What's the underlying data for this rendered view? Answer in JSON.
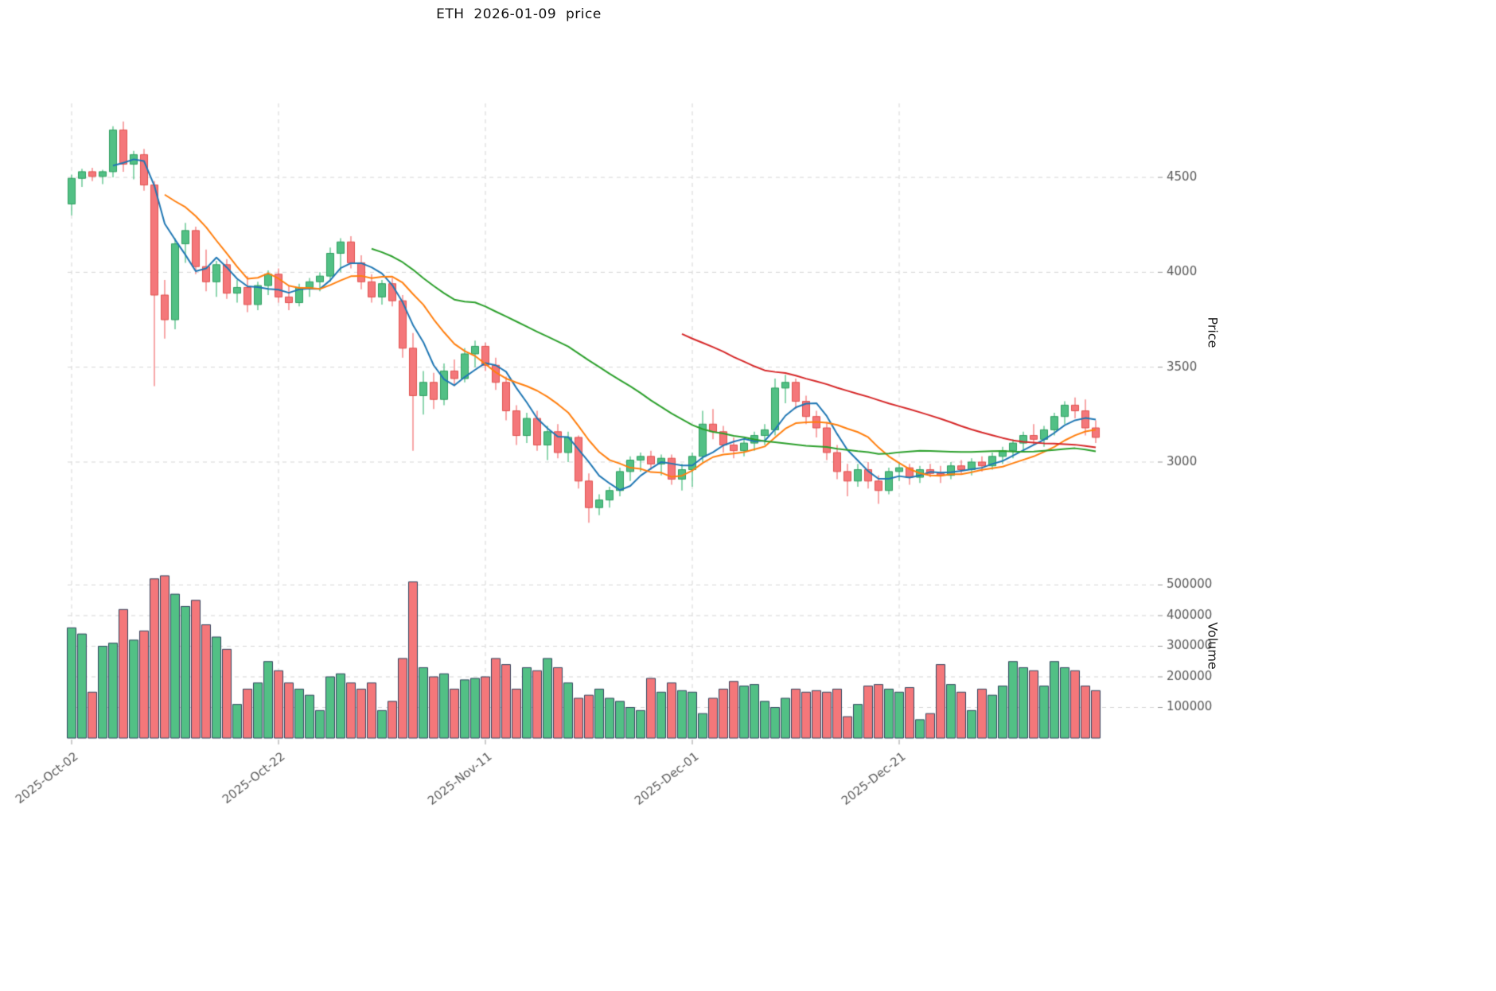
{
  "title": "ETH  2026-01-09  price",
  "axes": {
    "price_label": "Price",
    "volume_label": "Volume"
  },
  "chart_data": {
    "type": "candlestick",
    "symbol": "ETH",
    "title": "ETH  2026-01-09  price",
    "grid": true,
    "x_tick_labels": [
      "2025-Oct-02",
      "2025-Oct-22",
      "2025-Nov-11",
      "2025-Dec-01",
      "2025-Dec-21"
    ],
    "x_tick_indices": [
      0,
      20,
      40,
      60,
      80
    ],
    "price_ticks": [
      4500,
      4000,
      3500,
      3000
    ],
    "volume_ticks": [
      500000,
      400000,
      300000,
      200000,
      100000
    ],
    "price_axis_range": [
      2543,
      4890
    ],
    "volume_axis_range": [
      0,
      594000
    ],
    "ma_windows": [
      5,
      10,
      30,
      60
    ],
    "ma_colors": [
      "#1f77b4",
      "#ff7f0e",
      "#2ca02c",
      "#d62728"
    ],
    "up_color": "#52c085",
    "down_color": "#f4777a",
    "up_edge_color": "#2f9e60",
    "down_edge_color": "#e0524f",
    "volume_edge_color": "#32455f",
    "grid_color": "#d6d6d6",
    "tick_color": "#595959",
    "dates": [
      "2025-10-02",
      "2025-10-03",
      "2025-10-04",
      "2025-10-05",
      "2025-10-06",
      "2025-10-07",
      "2025-10-08",
      "2025-10-09",
      "2025-10-10",
      "2025-10-11",
      "2025-10-12",
      "2025-10-13",
      "2025-10-14",
      "2025-10-15",
      "2025-10-16",
      "2025-10-17",
      "2025-10-18",
      "2025-10-19",
      "2025-10-20",
      "2025-10-21",
      "2025-10-22",
      "2025-10-23",
      "2025-10-24",
      "2025-10-25",
      "2025-10-26",
      "2025-10-27",
      "2025-10-28",
      "2025-10-29",
      "2025-10-30",
      "2025-10-31",
      "2025-11-01",
      "2025-11-02",
      "2025-11-03",
      "2025-11-04",
      "2025-11-05",
      "2025-11-06",
      "2025-11-07",
      "2025-11-08",
      "2025-11-09",
      "2025-11-10",
      "2025-11-11",
      "2025-11-12",
      "2025-11-13",
      "2025-11-14",
      "2025-11-15",
      "2025-11-16",
      "2025-11-17",
      "2025-11-18",
      "2025-11-19",
      "2025-11-20",
      "2025-11-21",
      "2025-11-22",
      "2025-11-23",
      "2025-11-24",
      "2025-11-25",
      "2025-11-26",
      "2025-11-27",
      "2025-11-28",
      "2025-11-29",
      "2025-11-30",
      "2025-12-01",
      "2025-12-02",
      "2025-12-03",
      "2025-12-04",
      "2025-12-05",
      "2025-12-06",
      "2025-12-07",
      "2025-12-08",
      "2025-12-09",
      "2025-12-10",
      "2025-12-11",
      "2025-12-12",
      "2025-12-13",
      "2025-12-14",
      "2025-12-15",
      "2025-12-16",
      "2025-12-17",
      "2025-12-18",
      "2025-12-19",
      "2025-12-20",
      "2025-12-21",
      "2025-12-22",
      "2025-12-23",
      "2025-12-24",
      "2025-12-25",
      "2025-12-26",
      "2025-12-27",
      "2025-12-28",
      "2025-12-29",
      "2025-12-30",
      "2025-12-31",
      "2026-01-01",
      "2026-01-02",
      "2026-01-03",
      "2026-01-04",
      "2026-01-05",
      "2026-01-06",
      "2026-01-07",
      "2026-01-08",
      "2026-01-09"
    ],
    "open": [
      4360,
      4495,
      4530,
      4505,
      4530,
      4750,
      4570,
      4620,
      4460,
      3880,
      3750,
      4150,
      4220,
      4030,
      3950,
      4040,
      3890,
      3920,
      3830,
      3930,
      3990,
      3870,
      3840,
      3920,
      3950,
      3980,
      4100,
      4160,
      4050,
      3950,
      3870,
      3940,
      3850,
      3600,
      3350,
      3420,
      3330,
      3480,
      3440,
      3570,
      3610,
      3510,
      3420,
      3270,
      3140,
      3230,
      3090,
      3160,
      3050,
      3130,
      2900,
      2760,
      2800,
      2850,
      2950,
      3010,
      3030,
      2990,
      3020,
      2910,
      2960,
      3030,
      3200,
      3160,
      3090,
      3060,
      3100,
      3140,
      3170,
      3390,
      3420,
      3320,
      3240,
      3180,
      3050,
      2950,
      2900,
      2960,
      2900,
      2850,
      2950,
      2970,
      2920,
      2960,
      2940,
      2930,
      2980,
      2960,
      3000,
      2980,
      3030,
      3060,
      3100,
      3140,
      3120,
      3170,
      3240,
      3300,
      3270,
      3180
    ],
    "high": [
      4515,
      4545,
      4550,
      4540,
      4770,
      4795,
      4640,
      4650,
      4480,
      3960,
      4180,
      4260,
      4240,
      4120,
      4060,
      4070,
      3960,
      3980,
      3950,
      4010,
      4020,
      3930,
      3940,
      3970,
      4000,
      4130,
      4180,
      4190,
      4090,
      3990,
      3960,
      3970,
      3880,
      3680,
      3480,
      3470,
      3520,
      3540,
      3600,
      3640,
      3630,
      3550,
      3450,
      3300,
      3260,
      3270,
      3190,
      3200,
      3160,
      3140,
      2940,
      2830,
      2870,
      2970,
      3030,
      3050,
      3060,
      3040,
      3040,
      2990,
      3050,
      3270,
      3280,
      3190,
      3130,
      3120,
      3160,
      3200,
      3440,
      3460,
      3440,
      3350,
      3270,
      3210,
      3090,
      2990,
      2990,
      3000,
      2930,
      2970,
      3000,
      2990,
      2980,
      2990,
      2980,
      3000,
      3010,
      3020,
      3030,
      3050,
      3080,
      3120,
      3160,
      3200,
      3190,
      3260,
      3320,
      3340,
      3330,
      3220
    ],
    "low": [
      4300,
      4450,
      4480,
      4465,
      4500,
      4530,
      4490,
      4430,
      3400,
      3650,
      3700,
      4050,
      3990,
      3900,
      3870,
      3860,
      3840,
      3790,
      3800,
      3880,
      3840,
      3800,
      3820,
      3870,
      3900,
      3950,
      4000,
      4020,
      3910,
      3840,
      3830,
      3820,
      3550,
      3060,
      3250,
      3280,
      3300,
      3400,
      3420,
      3500,
      3480,
      3380,
      3220,
      3090,
      3100,
      3060,
      3010,
      3020,
      3000,
      2860,
      2680,
      2720,
      2760,
      2820,
      2900,
      2950,
      2960,
      2930,
      2880,
      2850,
      2870,
      3000,
      3120,
      3050,
      3020,
      3030,
      3060,
      3090,
      3140,
      3310,
      3280,
      3200,
      3130,
      3010,
      2910,
      2820,
      2870,
      2860,
      2780,
      2830,
      2900,
      2880,
      2890,
      2920,
      2890,
      2910,
      2940,
      2930,
      2950,
      2960,
      2990,
      3020,
      3060,
      3090,
      3080,
      3140,
      3200,
      3230,
      3140,
      3100
    ],
    "close": [
      4495,
      4530,
      4505,
      4530,
      4750,
      4570,
      4620,
      4460,
      3880,
      3750,
      4150,
      4220,
      4030,
      3950,
      4040,
      3890,
      3920,
      3830,
      3930,
      3990,
      3870,
      3840,
      3920,
      3950,
      3980,
      4100,
      4160,
      4050,
      3950,
      3870,
      3940,
      3850,
      3600,
      3350,
      3420,
      3330,
      3480,
      3440,
      3570,
      3610,
      3510,
      3420,
      3270,
      3140,
      3230,
      3090,
      3160,
      3050,
      3130,
      2900,
      2760,
      2800,
      2850,
      2950,
      3010,
      3030,
      2990,
      3020,
      2910,
      2960,
      3030,
      3200,
      3160,
      3090,
      3060,
      3100,
      3140,
      3170,
      3390,
      3420,
      3320,
      3240,
      3180,
      3050,
      2950,
      2900,
      2960,
      2900,
      2850,
      2950,
      2970,
      2920,
      2960,
      2940,
      2930,
      2980,
      2960,
      3000,
      2980,
      3030,
      3060,
      3100,
      3140,
      3120,
      3170,
      3240,
      3300,
      3270,
      3180,
      3130
    ],
    "volume": [
      360000,
      340000,
      150000,
      300000,
      310000,
      420000,
      320000,
      350000,
      520000,
      530000,
      470000,
      430000,
      450000,
      370000,
      330000,
      290000,
      110000,
      160000,
      180000,
      250000,
      220000,
      180000,
      160000,
      140000,
      90000,
      200000,
      210000,
      180000,
      160000,
      180000,
      90000,
      120000,
      260000,
      510000,
      230000,
      200000,
      210000,
      160000,
      190000,
      195000,
      200000,
      260000,
      240000,
      160000,
      230000,
      220000,
      260000,
      230000,
      180000,
      130000,
      140000,
      160000,
      130000,
      120000,
      100000,
      90000,
      195000,
      150000,
      180000,
      155000,
      150000,
      80000,
      130000,
      160000,
      185000,
      170000,
      175000,
      120000,
      100000,
      130000,
      160000,
      150000,
      155000,
      150000,
      160000,
      70000,
      110000,
      170000,
      175000,
      160000,
      150000,
      165000,
      60000,
      80000,
      240000,
      175000,
      150000,
      90000,
      160000,
      140000,
      170000,
      250000,
      230000,
      220000,
      170000,
      250000,
      230000,
      220000,
      170000,
      155000
    ]
  }
}
